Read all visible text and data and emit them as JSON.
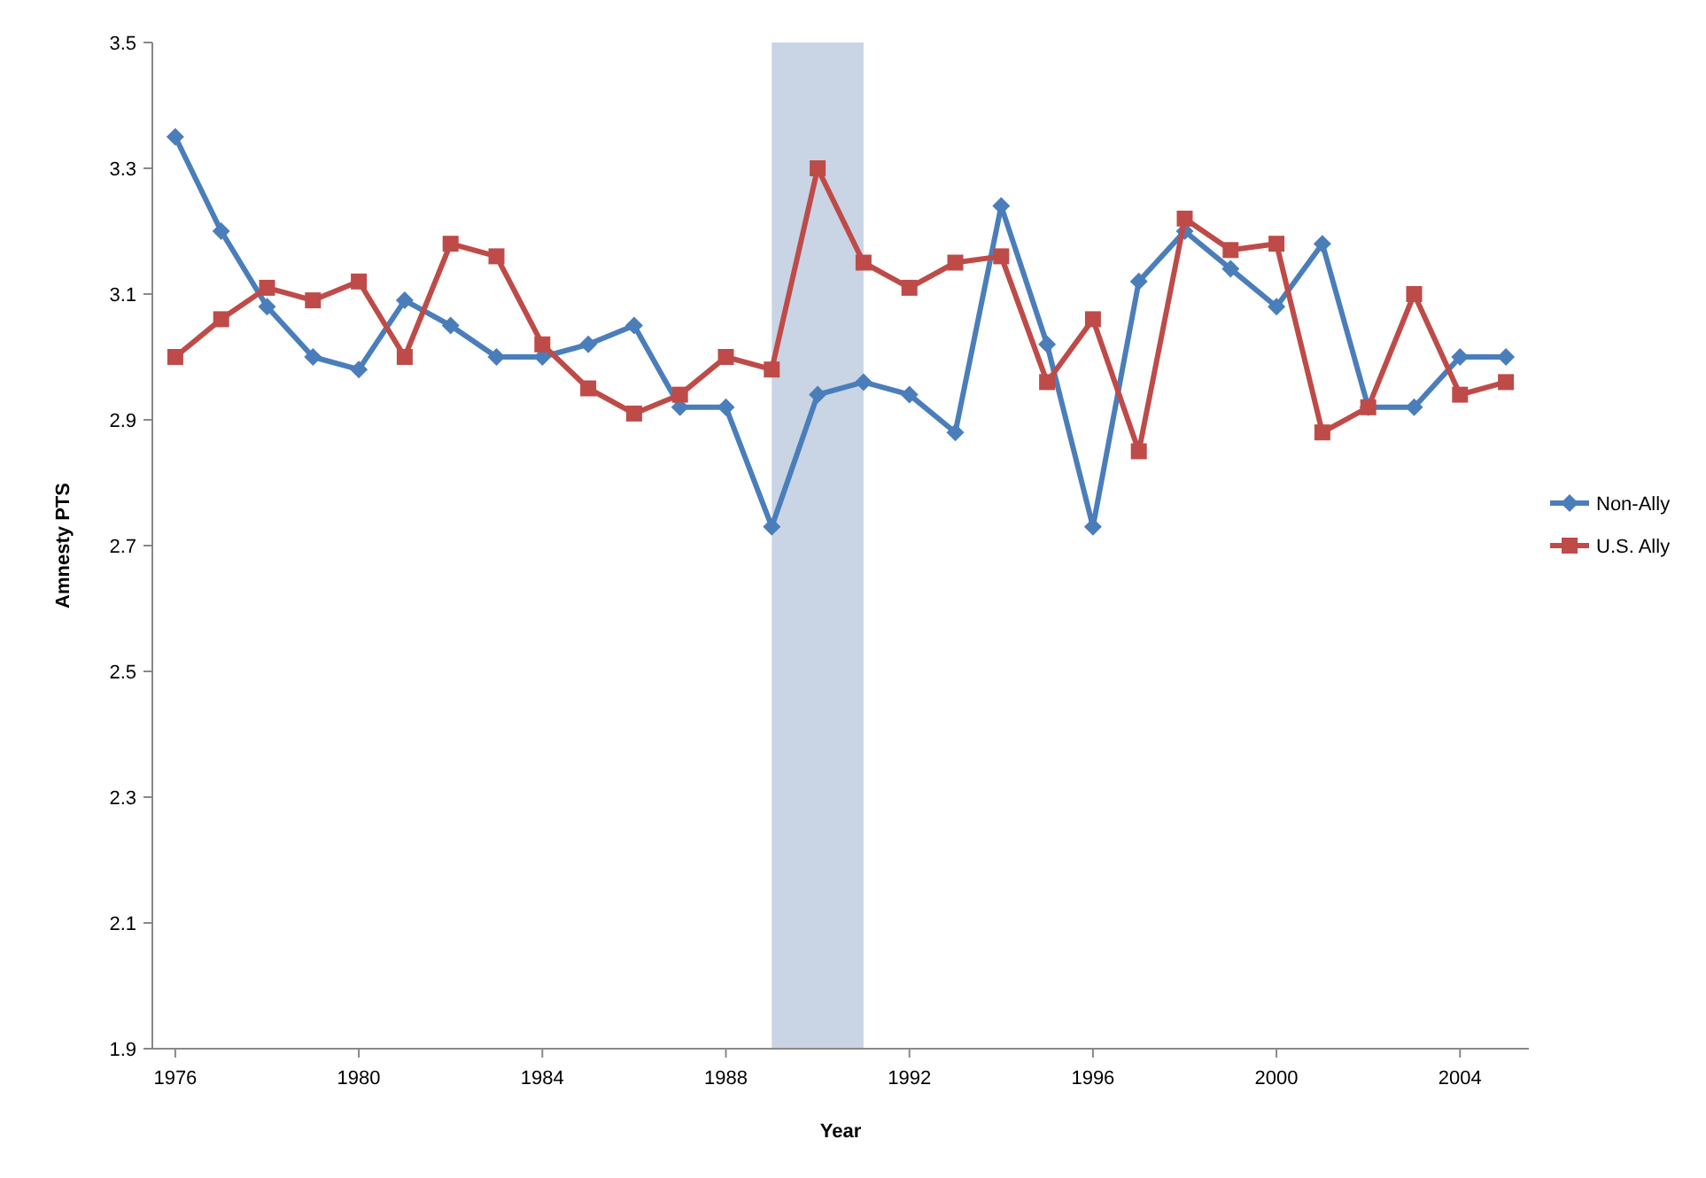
{
  "chart_data": {
    "type": "line",
    "xlabel": "Year",
    "ylabel": "Amnesty PTS",
    "x": [
      1976,
      1977,
      1978,
      1979,
      1980,
      1981,
      1982,
      1983,
      1984,
      1985,
      1986,
      1987,
      1988,
      1989,
      1990,
      1991,
      1992,
      1993,
      1994,
      1995,
      1996,
      1997,
      1998,
      1999,
      2000,
      2001,
      2002,
      2003,
      2004,
      2005
    ],
    "series": [
      {
        "name": "Non-Ally",
        "color": "#4a7ebb",
        "marker": "diamond",
        "values": [
          3.35,
          3.2,
          3.08,
          3.0,
          2.98,
          3.09,
          3.05,
          3.0,
          3.0,
          3.02,
          3.05,
          2.92,
          2.92,
          2.73,
          2.94,
          2.96,
          2.94,
          2.88,
          3.24,
          3.02,
          2.73,
          3.12,
          3.2,
          3.14,
          3.08,
          3.18,
          2.92,
          2.92,
          3.0,
          3.0
        ]
      },
      {
        "name": "U.S. Ally",
        "color": "#be4b48",
        "marker": "square",
        "values": [
          3.0,
          3.06,
          3.11,
          3.09,
          3.12,
          3.0,
          3.18,
          3.16,
          3.02,
          2.95,
          2.91,
          2.94,
          3.0,
          2.98,
          3.3,
          3.15,
          3.11,
          3.15,
          3.16,
          2.96,
          3.06,
          2.85,
          3.22,
          3.17,
          3.18,
          2.88,
          2.92,
          3.1,
          2.94,
          2.96
        ]
      }
    ],
    "xlim": [
      1975.5,
      2005.5
    ],
    "xticks": [
      1976,
      1980,
      1984,
      1988,
      1992,
      1996,
      2000,
      2004
    ],
    "ylim": [
      1.9,
      3.5
    ],
    "yticks": [
      {
        "value": 1.9,
        "label": "1.9"
      },
      {
        "value": 2.1,
        "label": "2.1"
      },
      {
        "value": 2.3,
        "label": "2.3"
      },
      {
        "value": 2.5,
        "label": "2.5"
      },
      {
        "value": 2.7,
        "label": "2.7"
      },
      {
        "value": 2.9,
        "label": "2.9"
      },
      {
        "value": 3.1,
        "label": "3.1"
      },
      {
        "value": 3.3,
        "label": "3.3"
      },
      {
        "value": 3.5,
        "label": "3.5"
      }
    ],
    "bands": [
      {
        "axis": "x",
        "from": 1989,
        "to": 1991,
        "color": "#c9d4e5"
      }
    ],
    "grid": false,
    "legend": "right",
    "line_style": "solid"
  }
}
